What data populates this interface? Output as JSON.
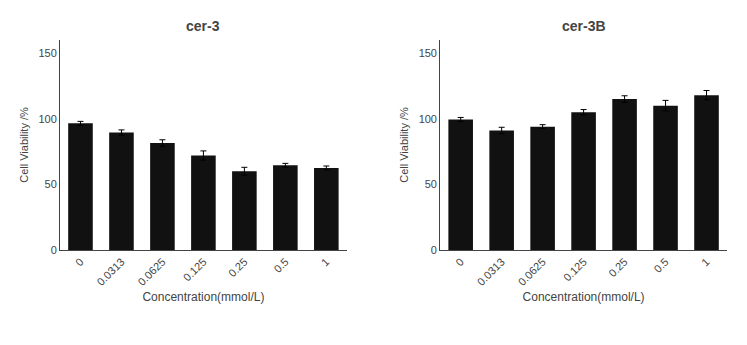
{
  "chart_data": [
    {
      "type": "bar",
      "title": "cer-3",
      "categories": [
        "0",
        "0.0313",
        "0.0625",
        "0.125",
        "0.25",
        "0.5",
        "1"
      ],
      "values": [
        96.5,
        89.5,
        81.5,
        72.0,
        60.0,
        64.5,
        62.5
      ],
      "errors": [
        1.5,
        2.0,
        2.5,
        3.5,
        3.0,
        1.5,
        1.5
      ],
      "xlabel": "Concentration(mmol/L)",
      "ylabel": "Cell Viability /%",
      "ylim": [
        0,
        160
      ],
      "yticks": [
        0,
        50,
        100,
        150
      ],
      "color": "#111111",
      "grid": false
    },
    {
      "type": "bar",
      "title": "cer-3B",
      "categories": [
        "0",
        "0.0313",
        "0.0625",
        "0.125",
        "0.25",
        "0.5",
        "1"
      ],
      "values": [
        99.5,
        91.0,
        94.0,
        105.0,
        115.0,
        110.0,
        118.0
      ],
      "errors": [
        1.5,
        2.5,
        1.5,
        2.0,
        2.5,
        4.0,
        3.5
      ],
      "xlabel": "Concentration(mmol/L)",
      "ylabel": "Cell Viability /%",
      "ylim": [
        0,
        160
      ],
      "yticks": [
        0,
        50,
        100,
        150
      ],
      "color": "#111111",
      "grid": false
    }
  ]
}
